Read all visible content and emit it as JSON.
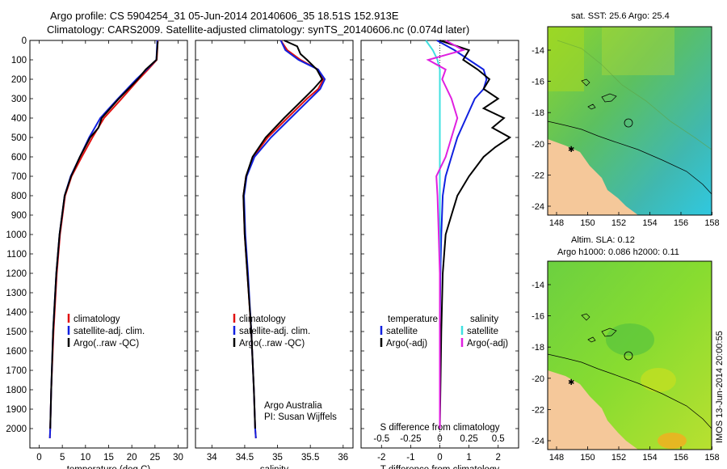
{
  "title": {
    "line1": "Argo profile: CS 5904254_31 05-Jun-2014 20140606_35 18.51S 152.913E",
    "line2": "Climatology: CARS2009. Satellite-adjusted climatology: synTS_20140606.nc (0.074d later)"
  },
  "colors": {
    "climatology": "#e01010",
    "satellite": "#1020e0",
    "argo": "#000000",
    "sal_sat": "#40e0e0",
    "sal_argo": "#e020e0",
    "land": "#f5c89a",
    "coast": "#000000"
  },
  "chart_data": [
    {
      "type": "line",
      "name": "temperature",
      "xlabel": "temperature (deg C)",
      "ylabel": "",
      "xlim": [
        -2,
        32
      ],
      "ylim": [
        2100,
        0
      ],
      "xticks": [
        0,
        5,
        10,
        15,
        20,
        25,
        30
      ],
      "yticks": [
        0,
        100,
        200,
        300,
        400,
        500,
        600,
        700,
        800,
        900,
        1000,
        1100,
        1200,
        1300,
        1400,
        1500,
        1600,
        1700,
        1800,
        1900,
        2000
      ],
      "legend": [
        "climatology",
        "satellite-adj. clim.",
        "Argo(..raw -QC)"
      ],
      "series": [
        {
          "name": "climatology",
          "color": "#e01010",
          "depth": [
            0,
            100,
            150,
            200,
            300,
            400,
            500,
            600,
            700,
            800,
            1000,
            1200,
            1500,
            1800,
            2000,
            2050
          ],
          "values": [
            25.6,
            25.4,
            23.5,
            21.5,
            17.8,
            14.0,
            11.5,
            9.2,
            7.0,
            5.6,
            4.5,
            3.8,
            3.1,
            2.6,
            2.4,
            2.3
          ]
        },
        {
          "name": "satellite-adj. clim.",
          "color": "#1020e0",
          "depth": [
            0,
            100,
            150,
            200,
            300,
            400,
            500,
            600,
            700,
            800,
            1000,
            1200,
            1500,
            1800,
            2000,
            2050
          ],
          "values": [
            25.5,
            25.3,
            23.2,
            21.0,
            17.0,
            13.2,
            10.8,
            8.8,
            6.8,
            5.5,
            4.4,
            3.7,
            3.0,
            2.6,
            2.4,
            2.3
          ]
        },
        {
          "name": "Argo(..raw -QC)",
          "color": "#000000",
          "depth": [
            5,
            100,
            150,
            200,
            300,
            400,
            450,
            500,
            600,
            700,
            800,
            1000,
            1200,
            1500,
            1800,
            2000
          ],
          "values": [
            25.6,
            25.3,
            23.0,
            21.3,
            17.2,
            13.5,
            12.8,
            11.0,
            8.8,
            6.9,
            5.5,
            4.4,
            3.7,
            3.0,
            2.6,
            2.4
          ]
        }
      ]
    },
    {
      "type": "line",
      "name": "salinity",
      "xlabel": "salinity",
      "xlim": [
        33.75,
        36.15
      ],
      "ylim": [
        2100,
        0
      ],
      "xticks": [
        34,
        34.5,
        35,
        35.5,
        36
      ],
      "xticklabels": [
        "34",
        "34.5",
        "35",
        "35.5",
        "36"
      ],
      "legend": [
        "climatology",
        "satellite-adj. clim.",
        "Argo(..raw -QC)"
      ],
      "annotation": [
        "Argo Australia",
        "PI: Susan Wijffels"
      ],
      "series": [
        {
          "name": "climatology",
          "color": "#e01010",
          "depth": [
            0,
            50,
            100,
            150,
            200,
            250,
            300,
            400,
            500,
            600,
            700,
            800,
            1000,
            1200,
            1500,
            1800,
            2000,
            2050
          ],
          "values": [
            35.05,
            35.15,
            35.35,
            35.62,
            35.7,
            35.62,
            35.45,
            35.15,
            34.85,
            34.63,
            34.52,
            34.48,
            34.5,
            34.54,
            34.6,
            34.64,
            34.66,
            34.67
          ]
        },
        {
          "name": "satellite-adj. clim.",
          "color": "#1020e0",
          "depth": [
            0,
            50,
            100,
            150,
            200,
            250,
            300,
            400,
            500,
            600,
            700,
            800,
            1000,
            1200,
            1500,
            1800,
            2000,
            2050
          ],
          "values": [
            35.05,
            35.12,
            35.32,
            35.62,
            35.72,
            35.65,
            35.5,
            35.2,
            34.9,
            34.65,
            34.53,
            34.49,
            34.51,
            34.55,
            34.6,
            34.64,
            34.66,
            34.67
          ]
        },
        {
          "name": "Argo(..raw -QC)",
          "color": "#000000",
          "depth": [
            0,
            30,
            70,
            100,
            150,
            200,
            250,
            300,
            400,
            500,
            600,
            700,
            800,
            1000,
            1200,
            1500,
            1800,
            2000
          ],
          "values": [
            35.1,
            35.3,
            35.35,
            35.45,
            35.6,
            35.68,
            35.55,
            35.4,
            35.1,
            34.82,
            34.62,
            34.52,
            34.48,
            34.5,
            34.54,
            34.6,
            34.64,
            34.66
          ]
        }
      ]
    },
    {
      "type": "line",
      "name": "difference",
      "xlabel": "T difference from climatology",
      "xlabel2": "S difference from climatology",
      "xlim": [
        -2.7,
        2.7
      ],
      "ylim": [
        2100,
        0
      ],
      "xticks": [
        -2,
        -1,
        0,
        1,
        2
      ],
      "xticks2": [
        -0.5,
        -0.25,
        0,
        0.25,
        0.5
      ],
      "xticklabels2": [
        "-0.5",
        "-0.25",
        "0",
        "0.25",
        "0.5"
      ],
      "legend_titles": [
        "temperature",
        "salinity"
      ],
      "legend": [
        "satellite",
        "Argo(-adj)",
        "satellite",
        "Argo(-adj)"
      ],
      "series": [
        {
          "name": "T satellite",
          "color": "#1020e0",
          "depth": [
            0,
            50,
            100,
            150,
            200,
            250,
            300,
            400,
            500,
            600,
            700,
            800,
            1000,
            1200,
            1500,
            2000
          ],
          "values": [
            -0.1,
            0.5,
            1.0,
            1.5,
            1.6,
            1.5,
            1.2,
            0.9,
            0.6,
            0.4,
            0.2,
            0.1,
            0.05,
            0.02,
            0.0,
            0.0
          ]
        },
        {
          "name": "T Argo(-adj)",
          "color": "#000000",
          "depth": [
            0,
            50,
            100,
            150,
            200,
            250,
            300,
            350,
            400,
            450,
            500,
            550,
            600,
            700,
            800,
            900,
            1000,
            1200,
            1500,
            2000
          ],
          "values": [
            0.0,
            1.0,
            0.8,
            1.3,
            1.7,
            1.5,
            2.0,
            1.5,
            2.2,
            1.8,
            2.4,
            1.9,
            1.5,
            1.0,
            0.6,
            0.4,
            0.2,
            0.1,
            0.05,
            0.0
          ]
        },
        {
          "name": "S satellite",
          "color": "#40e0e0",
          "depth": [
            0,
            50,
            100,
            150,
            200,
            300,
            400,
            500,
            600,
            700,
            800,
            1000,
            1500,
            2000
          ],
          "values": [
            -0.12,
            -0.06,
            -0.02,
            0.0,
            0.0,
            0.0,
            0.0,
            0.0,
            0.0,
            0.0,
            0.0,
            0.0,
            0.0,
            0.0
          ]
        },
        {
          "name": "S Argo(-adj)",
          "color": "#e020e0",
          "depth": [
            0,
            50,
            100,
            150,
            200,
            300,
            400,
            500,
            600,
            700,
            800,
            1000,
            1200,
            1500,
            2000
          ],
          "values": [
            0.05,
            0.2,
            -0.1,
            0.05,
            0.02,
            0.1,
            0.15,
            0.1,
            0.05,
            -0.03,
            -0.02,
            -0.01,
            0.0,
            0.0,
            0.0
          ]
        }
      ]
    }
  ],
  "maps": [
    {
      "title": "sat. SST: 25.6 Argo: 25.4",
      "title2": "",
      "xticks": [
        "148",
        "150",
        "152",
        "154",
        "156",
        "158"
      ],
      "yticks": [
        "-14",
        "-16",
        "-18",
        "-20",
        "-22",
        "-24"
      ]
    },
    {
      "title": "Altim. SLA: 0.12",
      "title2": "Argo h1000: 0.086 h2000: 0.11",
      "xticks": [
        "148",
        "150",
        "152",
        "154",
        "156",
        "158"
      ],
      "yticks": [
        "-14",
        "-16",
        "-18",
        "-20",
        "-22",
        "-24"
      ]
    }
  ],
  "credit": "IMOS 13-Jun-2014 20:00:55"
}
